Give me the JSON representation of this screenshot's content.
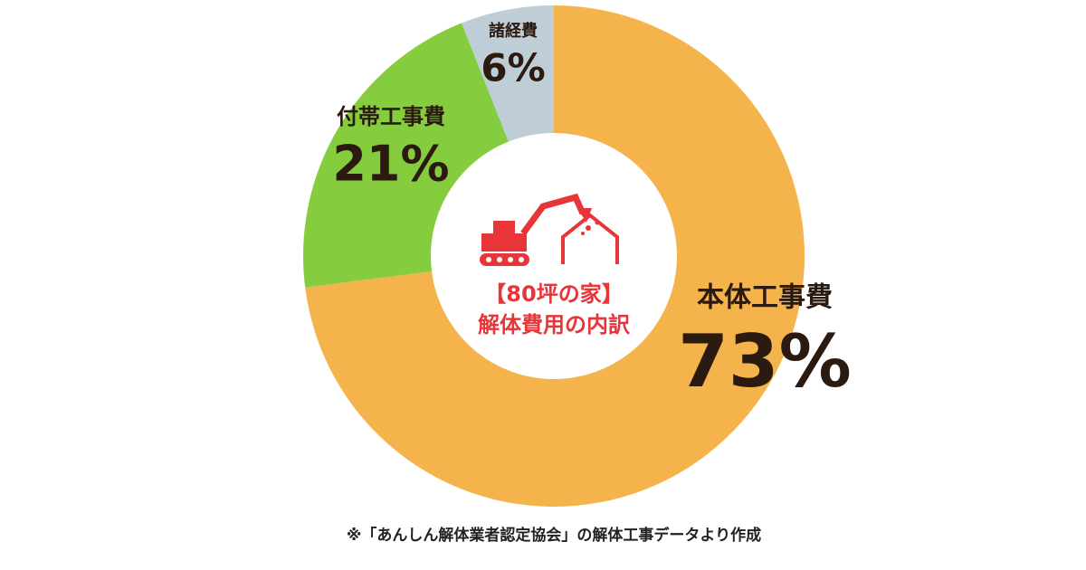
{
  "chart_data": {
    "type": "pie",
    "donut": true,
    "title_lines": [
      "【80坪の家】",
      "解体費用の内訳"
    ],
    "categories": [
      "本体工事費",
      "付帯工事費",
      "諸経費"
    ],
    "values": [
      73,
      21,
      6
    ],
    "value_labels": [
      "73%",
      "21%",
      "6%"
    ],
    "colors": [
      "#f5b34b",
      "#86cc3f",
      "#bfcdd6"
    ],
    "footnote": "※「あんしん解体業者認定協会」の解体工事データより作成"
  }
}
